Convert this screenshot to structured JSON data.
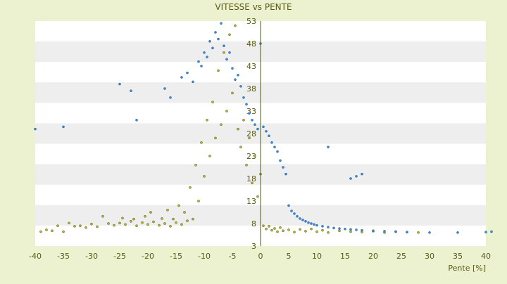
{
  "chart_data": {
    "type": "scatter",
    "title": "VITESSE vs PENTE",
    "xlabel": "Pente [%]",
    "ylabel": "",
    "xlim": [
      -40,
      40
    ],
    "ylim": [
      3,
      53
    ],
    "x_ticks": [
      -40,
      -35,
      -30,
      -25,
      -20,
      -15,
      -10,
      -5,
      0,
      5,
      10,
      15,
      20,
      25,
      30,
      35,
      40
    ],
    "x_tick_labels": [
      "-40",
      "-35",
      "-30",
      "-25",
      "-20",
      "-15",
      "-10",
      "-5",
      "0",
      "5",
      "10",
      "15",
      "20",
      "25",
      "30",
      "35",
      "40"
    ],
    "y_ticks": [
      3,
      8,
      13,
      18,
      23,
      28,
      33,
      38,
      43,
      48,
      53
    ],
    "y_tick_labels": [
      "3",
      "8",
      "13",
      "18",
      "23",
      "28",
      "33",
      "38",
      "43",
      "48",
      "53"
    ],
    "grid": "alternating horizontal bands",
    "legend": "none",
    "colors": {
      "background": "#ecf2cf",
      "band_light": "#ffffff",
      "band_dark": "#eeeeee",
      "axis": "#4a5a1a",
      "text": "#5a5a14"
    },
    "series": [
      {
        "color": "#b4b832",
        "edge": "#404010",
        "points": [
          [
            -39,
            6.2
          ],
          [
            -38,
            6.6
          ],
          [
            -37,
            6.4
          ],
          [
            -36,
            7.5
          ],
          [
            -35,
            6.2
          ],
          [
            -34,
            8.1
          ],
          [
            -33,
            7.4
          ],
          [
            -32,
            7.5
          ],
          [
            -31,
            7.1
          ],
          [
            -30,
            7.9
          ],
          [
            -29,
            7.3
          ],
          [
            -28,
            9.6
          ],
          [
            -27,
            8.0
          ],
          [
            -26,
            7.6
          ],
          [
            -25,
            8.1
          ],
          [
            -24.5,
            9.2
          ],
          [
            -24,
            7.8
          ],
          [
            -23,
            8.5
          ],
          [
            -22.5,
            9.0
          ],
          [
            -22,
            7.5
          ],
          [
            -21,
            8.2
          ],
          [
            -20.5,
            9.6
          ],
          [
            -20,
            7.8
          ],
          [
            -19.5,
            10.5
          ],
          [
            -19,
            8.4
          ],
          [
            -18,
            7.6
          ],
          [
            -17.5,
            9.1
          ],
          [
            -17,
            8.0
          ],
          [
            -16.5,
            11.0
          ],
          [
            -16,
            7.4
          ],
          [
            -15.5,
            9.0
          ],
          [
            -15,
            8.2
          ],
          [
            -14.5,
            12.0
          ],
          [
            -14,
            7.8
          ],
          [
            -13.5,
            10.5
          ],
          [
            -13,
            8.6
          ],
          [
            -12.5,
            16.0
          ],
          [
            -12,
            9.0
          ],
          [
            -11.5,
            21.0
          ],
          [
            -11,
            13.0
          ],
          [
            -10.5,
            26.0
          ],
          [
            -10,
            18.5
          ],
          [
            -9.5,
            31.0
          ],
          [
            -9,
            23.0
          ],
          [
            -8.5,
            35.0
          ],
          [
            -8,
            27.0
          ],
          [
            -7.5,
            42.0
          ],
          [
            -7,
            30.0
          ],
          [
            -6.5,
            46.0
          ],
          [
            -6,
            33.0
          ],
          [
            -5.5,
            50.0
          ],
          [
            -5,
            37.0
          ],
          [
            -4.5,
            52.0
          ],
          [
            -4,
            29.0
          ],
          [
            -3.5,
            25.0
          ],
          [
            -3,
            31.0
          ],
          [
            -2.5,
            21.0
          ],
          [
            -2,
            27.0
          ],
          [
            -1.5,
            17.0
          ],
          [
            -1,
            23.0
          ],
          [
            -0.5,
            14.0
          ],
          [
            0,
            19.0
          ],
          [
            0.5,
            7.5
          ],
          [
            1,
            6.8
          ],
          [
            1.5,
            7.4
          ],
          [
            2,
            6.5
          ],
          [
            2.5,
            6.9
          ],
          [
            3,
            6.2
          ],
          [
            3.5,
            7.1
          ],
          [
            4,
            6.4
          ],
          [
            5,
            6.6
          ],
          [
            6,
            6.1
          ],
          [
            7,
            6.7
          ],
          [
            8,
            6.3
          ],
          [
            9,
            6.8
          ],
          [
            10,
            6.2
          ],
          [
            11,
            6.5
          ],
          [
            12,
            6.0
          ],
          [
            14,
            6.4
          ],
          [
            16,
            6.2
          ],
          [
            18,
            6.1
          ],
          [
            20,
            6.3
          ],
          [
            22,
            6.0
          ],
          [
            24,
            6.2
          ],
          [
            26,
            6.1
          ],
          [
            28,
            6.0
          ]
        ]
      },
      {
        "color": "#3c8ad2",
        "edge": "#1e5a96",
        "points": [
          [
            -40,
            29.0
          ],
          [
            -35,
            29.5
          ],
          [
            -25,
            39.0
          ],
          [
            -23,
            37.5
          ],
          [
            -22,
            31.0
          ],
          [
            -17,
            38.0
          ],
          [
            -16,
            36.0
          ],
          [
            -14,
            40.5
          ],
          [
            -13,
            41.5
          ],
          [
            -12,
            39.5
          ],
          [
            -11,
            44.0
          ],
          [
            -10.5,
            43.0
          ],
          [
            -10,
            46.0
          ],
          [
            -9.5,
            45.0
          ],
          [
            -9,
            48.5
          ],
          [
            -8.5,
            47.0
          ],
          [
            -8,
            50.5
          ],
          [
            -7.5,
            49.0
          ],
          [
            -7,
            52.5
          ],
          [
            -6.5,
            47.5
          ],
          [
            -6,
            44.5
          ],
          [
            -5.5,
            46.0
          ],
          [
            -5,
            42.5
          ],
          [
            -4.5,
            40.0
          ],
          [
            -4,
            41.0
          ],
          [
            -3.5,
            38.5
          ],
          [
            -3,
            36.0
          ],
          [
            -2.5,
            34.5
          ],
          [
            -2,
            32.5
          ],
          [
            -1.5,
            31.0
          ],
          [
            -1,
            30.0
          ],
          [
            -0.5,
            29.0
          ],
          [
            0,
            48.0
          ],
          [
            0.5,
            29.5
          ],
          [
            1,
            28.5
          ],
          [
            1.5,
            27.5
          ],
          [
            2,
            26.0
          ],
          [
            2.5,
            25.0
          ],
          [
            3,
            24.0
          ],
          [
            3.5,
            22.0
          ],
          [
            4,
            20.5
          ],
          [
            4.5,
            19.0
          ],
          [
            5,
            12.0
          ],
          [
            5.5,
            10.8
          ],
          [
            6,
            10.2
          ],
          [
            6.5,
            9.6
          ],
          [
            7,
            9.1
          ],
          [
            7.5,
            8.8
          ],
          [
            8,
            8.5
          ],
          [
            8.5,
            8.2
          ],
          [
            9,
            8.0
          ],
          [
            9.5,
            7.8
          ],
          [
            10,
            7.6
          ],
          [
            11,
            7.4
          ],
          [
            12,
            7.2
          ],
          [
            13,
            7.0
          ],
          [
            14,
            6.9
          ],
          [
            15,
            6.8
          ],
          [
            16,
            6.7
          ],
          [
            17,
            6.6
          ],
          [
            18,
            6.5
          ],
          [
            20,
            6.4
          ],
          [
            22,
            6.3
          ],
          [
            24,
            6.2
          ],
          [
            26,
            6.1
          ],
          [
            30,
            6.0
          ],
          [
            35,
            6.0
          ],
          [
            40,
            6.1
          ],
          [
            41,
            6.2
          ],
          [
            16,
            18.0
          ],
          [
            17,
            18.5
          ],
          [
            18,
            19.0
          ],
          [
            12,
            25.0
          ]
        ]
      }
    ]
  }
}
